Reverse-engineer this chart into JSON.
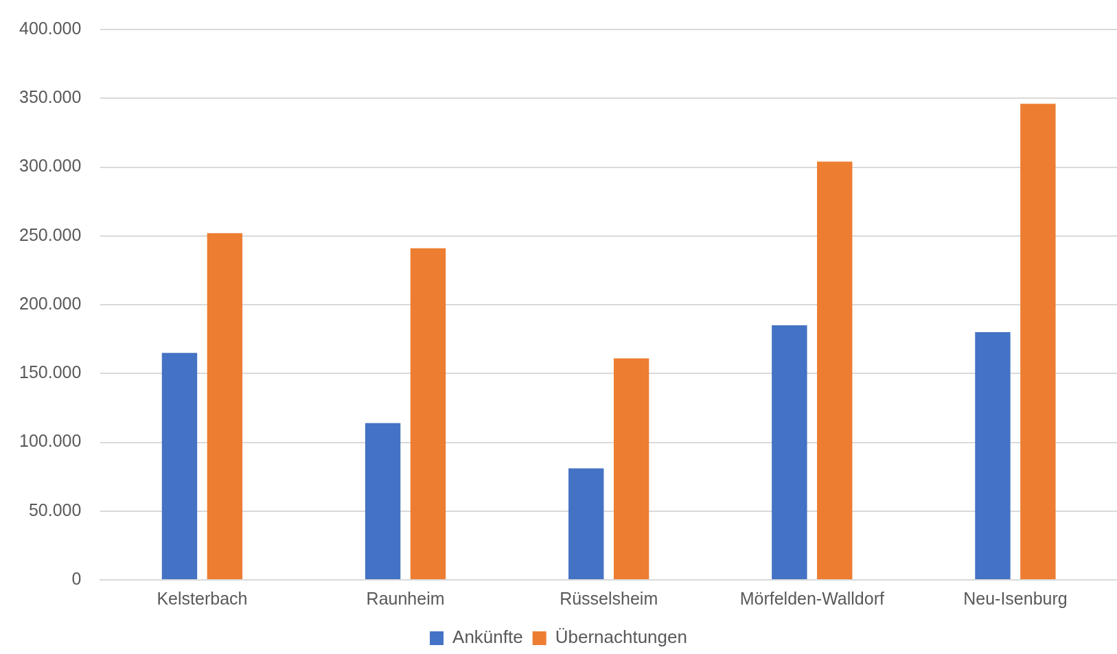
{
  "chart_data": {
    "type": "bar",
    "categories": [
      "Kelsterbach",
      "Raunheim",
      "Rüsselsheim",
      "Mörfelden-Walldorf",
      "Neu-Isenburg"
    ],
    "series": [
      {
        "name": "Ankünfte",
        "color": "#4472c4",
        "values": [
          165000,
          114000,
          81000,
          185000,
          180000
        ]
      },
      {
        "name": "Übernachtungen",
        "color": "#ed7d31",
        "values": [
          252000,
          241000,
          161000,
          304000,
          346000
        ]
      }
    ],
    "ylim": [
      0,
      400000
    ],
    "yticks": [
      {
        "value": 0,
        "label": "0"
      },
      {
        "value": 50000,
        "label": "50.000"
      },
      {
        "value": 100000,
        "label": "100.000"
      },
      {
        "value": 150000,
        "label": "150.000"
      },
      {
        "value": 200000,
        "label": "200.000"
      },
      {
        "value": 250000,
        "label": "250.000"
      },
      {
        "value": 300000,
        "label": "300.000"
      },
      {
        "value": 350000,
        "label": "350.000"
      },
      {
        "value": 400000,
        "label": "400.000"
      }
    ],
    "grid": "y",
    "legend": "bottom"
  }
}
